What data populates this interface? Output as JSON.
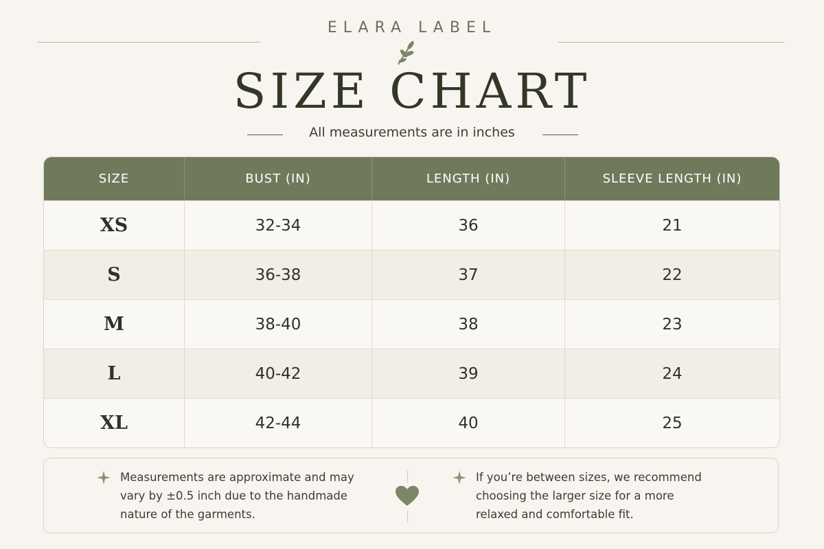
{
  "header": {
    "brand": "ELARA LABEL",
    "title": "SIZE CHART",
    "subtitle": "All measurements are in inches"
  },
  "table": {
    "columns": [
      "SIZE",
      "BUST (IN)",
      "LENGTH (IN)",
      "SLEEVE LENGTH (IN)"
    ],
    "rows": [
      [
        "XS",
        "32-34",
        "36",
        "21"
      ],
      [
        "S",
        "36-38",
        "37",
        "22"
      ],
      [
        "M",
        "38-40",
        "38",
        "23"
      ],
      [
        "L",
        "40-42",
        "39",
        "24"
      ],
      [
        "XL",
        "42-44",
        "40",
        "25"
      ]
    ]
  },
  "notes": [
    {
      "lines": [
        "Measurements are approximate and may",
        "vary by ±0.5 inch due to the handmade",
        "nature of the garments."
      ]
    },
    {
      "lines": [
        "If you’re between sizes, we recommend",
        "choosing the larger size for a more",
        "relaxed and comfortable fit."
      ]
    }
  ]
}
